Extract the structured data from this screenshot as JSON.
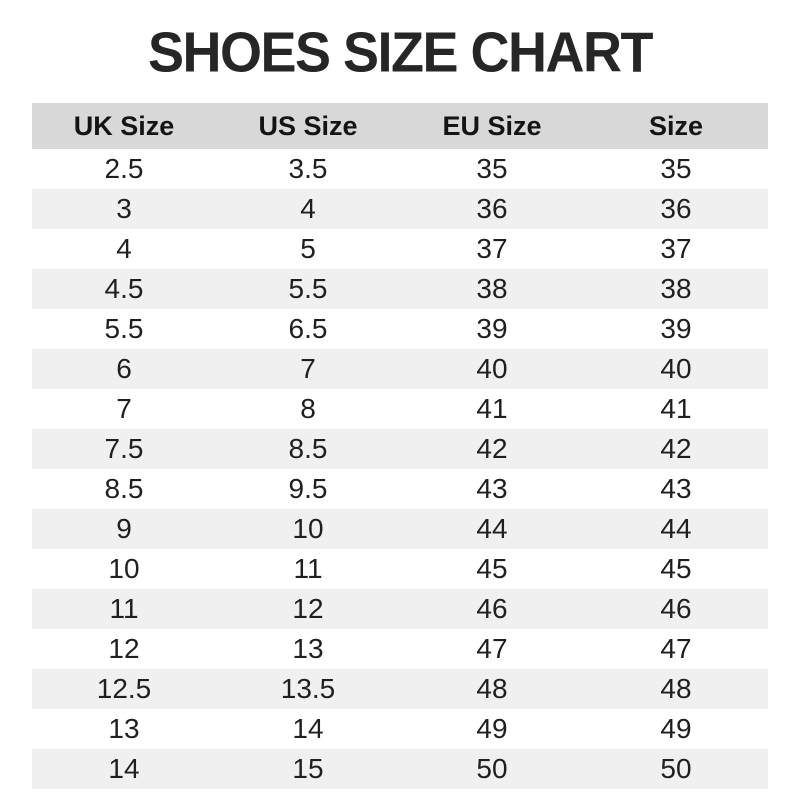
{
  "page": {
    "title": "SHOES SIZE CHART"
  },
  "colors": {
    "background": "#ffffff",
    "title_text": "#262626",
    "header_row_background": "#d8d8d8",
    "alt_row_background": "#f0f0f0",
    "cell_text": "#1f1f1f"
  },
  "chart_data": {
    "type": "table",
    "title": "SHOES SIZE CHART",
    "columns": [
      "UK Size",
      "US Size",
      "EU Size",
      "Size"
    ],
    "rows": [
      [
        "2.5",
        "3.5",
        "35",
        "35"
      ],
      [
        "3",
        "4",
        "36",
        "36"
      ],
      [
        "4",
        "5",
        "37",
        "37"
      ],
      [
        "4.5",
        "5.5",
        "38",
        "38"
      ],
      [
        "5.5",
        "6.5",
        "39",
        "39"
      ],
      [
        "6",
        "7",
        "40",
        "40"
      ],
      [
        "7",
        "8",
        "41",
        "41"
      ],
      [
        "7.5",
        "8.5",
        "42",
        "42"
      ],
      [
        "8.5",
        "9.5",
        "43",
        "43"
      ],
      [
        "9",
        "10",
        "44",
        "44"
      ],
      [
        "10",
        "11",
        "45",
        "45"
      ],
      [
        "11",
        "12",
        "46",
        "46"
      ],
      [
        "12",
        "13",
        "47",
        "47"
      ],
      [
        "12.5",
        "13.5",
        "48",
        "48"
      ],
      [
        "13",
        "14",
        "49",
        "49"
      ],
      [
        "14",
        "15",
        "50",
        "50"
      ]
    ],
    "layout_hints": {
      "row_striping": "even rows shaded light gray",
      "header_shaded": true,
      "all_cells_centered": true
    }
  }
}
